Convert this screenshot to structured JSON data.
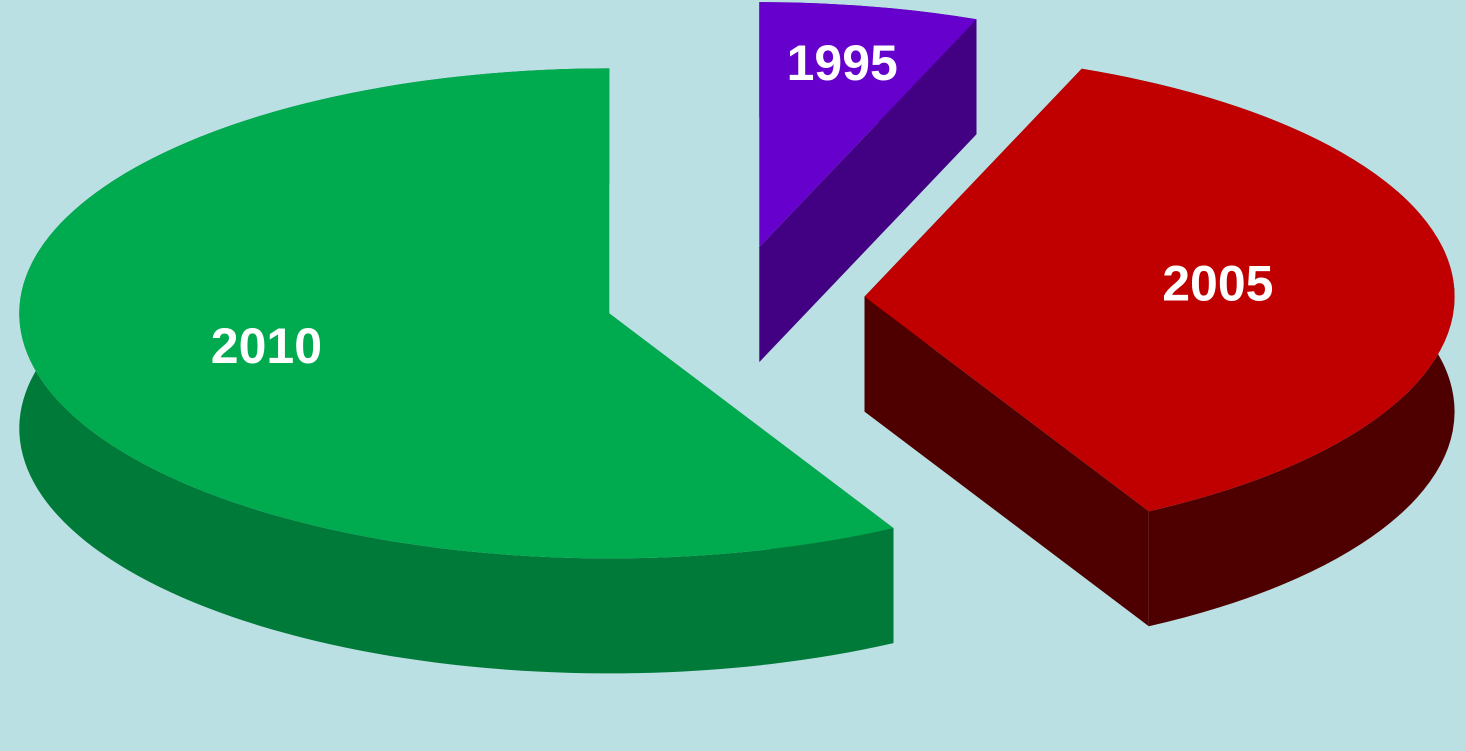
{
  "chart_data": {
    "type": "pie",
    "categories": [
      "1995",
      "2005",
      "2010"
    ],
    "values": [
      6,
      36,
      58
    ],
    "colors": [
      "#6600cc",
      "#c00000",
      "#00aa4f"
    ],
    "side_colors": [
      "#420082",
      "#4e0000",
      "#007a38"
    ]
  }
}
